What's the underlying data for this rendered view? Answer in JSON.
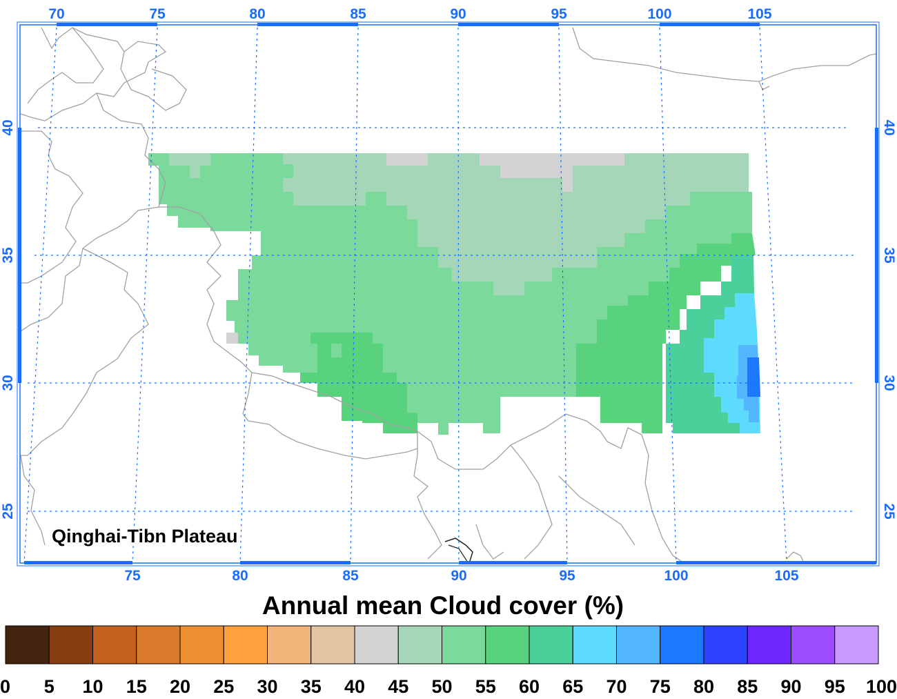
{
  "figure": {
    "title": "Annual mean Cloud cover (%)",
    "region_label": "Qinghai-Tibn Plateau"
  },
  "axes": {
    "top_lon_labels": [
      "70",
      "75",
      "80",
      "85",
      "90",
      "95",
      "100",
      "105"
    ],
    "bottom_lon_labels": [
      "75",
      "80",
      "85",
      "90",
      "95",
      "100",
      "105"
    ],
    "lat_labels": [
      "25",
      "30",
      "35",
      "40"
    ],
    "grid": true,
    "accent_color": "#1a6cff",
    "border_color": "#a0a0a0"
  },
  "colorbar": {
    "unit": "%",
    "tick_labels": [
      "0",
      "5",
      "10",
      "15",
      "20",
      "25",
      "30",
      "35",
      "40",
      "45",
      "50",
      "55",
      "60",
      "65",
      "70",
      "75",
      "80",
      "85",
      "90",
      "95",
      "100"
    ],
    "colors": [
      "#45240f",
      "#853f13",
      "#c3621f",
      "#d97b2b",
      "#ee8f33",
      "#fea23e",
      "#f0b57a",
      "#e2c4a2",
      "#d3d3d3",
      "#a6d6b8",
      "#7ad99b",
      "#58d27d",
      "#4bcf9b",
      "#5ddbff",
      "#54b6ff",
      "#1c79ff",
      "#2d42ff",
      "#6c28ff",
      "#9d4dff",
      "#c89aff"
    ]
  },
  "chart_data": {
    "type": "heatmap",
    "title": "Annual mean Cloud cover (%)",
    "variable": "Annual mean Cloud cover",
    "unit": "%",
    "lon_range": [
      70,
      109
    ],
    "lat_range": [
      23,
      43
    ],
    "region": "Qinghai-Tibn Plateau",
    "value_bins": [
      0,
      5,
      10,
      15,
      20,
      25,
      30,
      35,
      40,
      45,
      50,
      55,
      60,
      65,
      70,
      75,
      80,
      85,
      90,
      95,
      100
    ],
    "regions": [
      {
        "bin": "35-40",
        "description": "northern strip near 38-39N, 77-78E, 86-88E and 93-97E"
      },
      {
        "bin": "40-45",
        "description": "northern Tibetan plateau, roughly 33.5-39N, 82-103E"
      },
      {
        "bin": "45-50",
        "description": "central and western plateau"
      },
      {
        "bin": "50-55",
        "description": "southern plateau 28-31N 84-88E and eastern plateau 28-36N 95-103E"
      },
      {
        "bin": "55-60",
        "description": "eastern margin 28-35N 100-103E"
      },
      {
        "bin": "60-65",
        "description": "southeastern margin 28-33N 102-104E"
      },
      {
        "bin": "65-70",
        "description": "south-eastern edge near 29-31N, 103.5E"
      },
      {
        "bin": "70-75",
        "description": "grid cells near 29.5-30.5N, 103.7E"
      }
    ]
  }
}
